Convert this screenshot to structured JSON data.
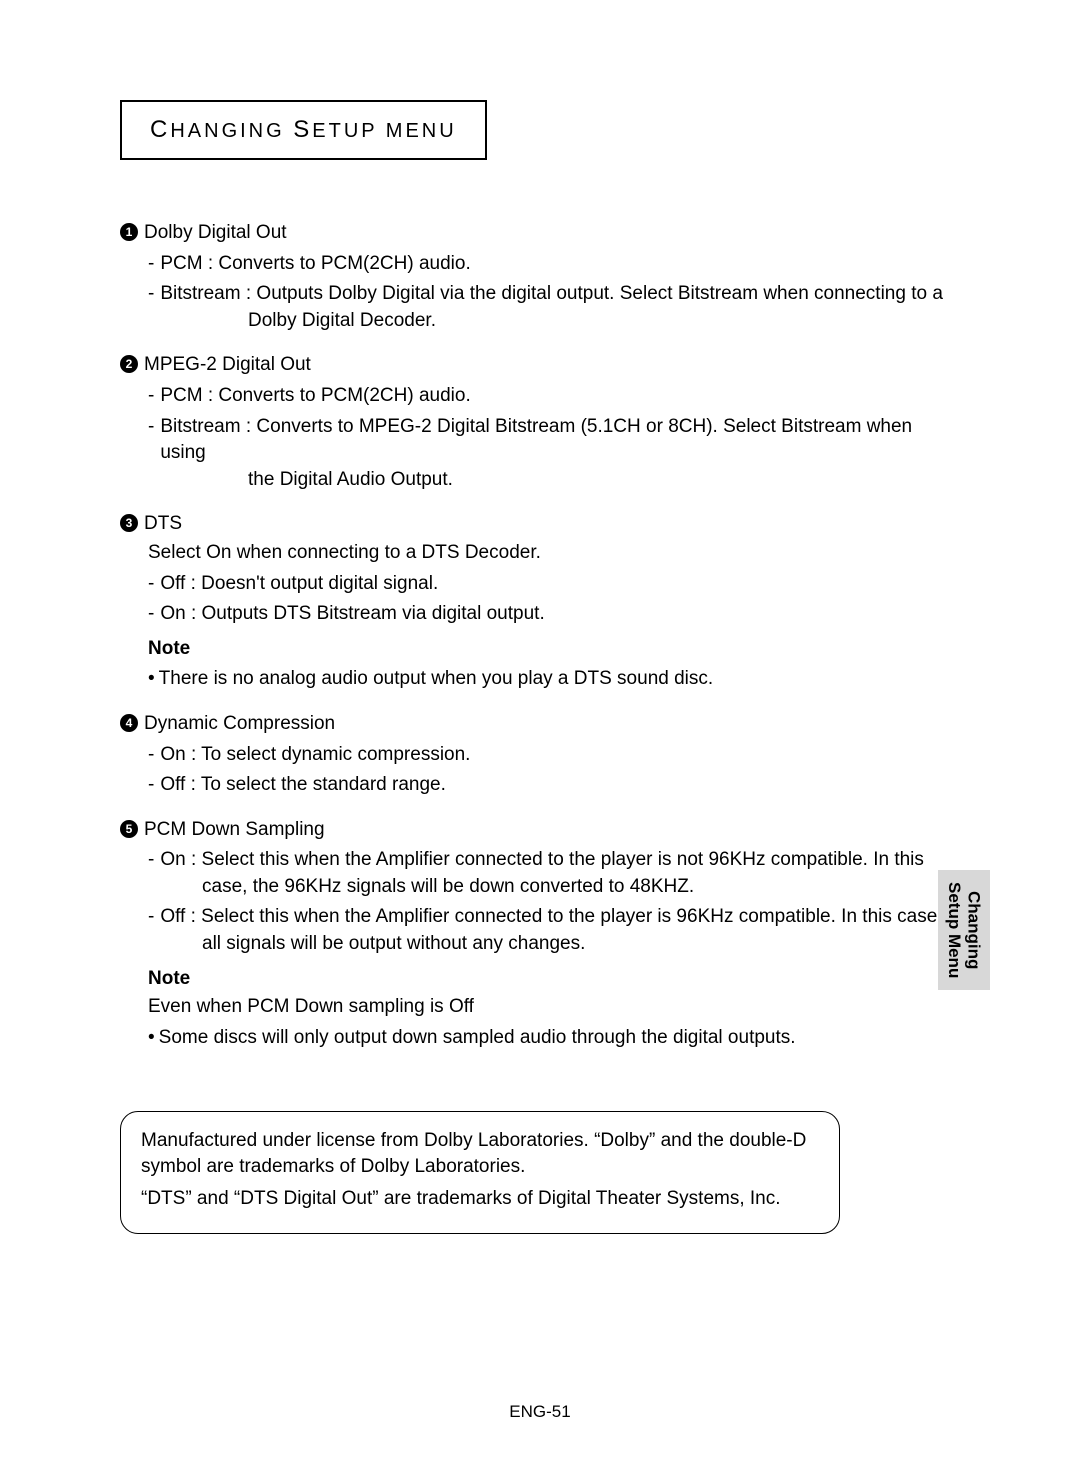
{
  "header": {
    "title_html": "<span class='cap'>C</span>HANGING <span class='cap'>S</span>ETUP MENU"
  },
  "sections": [
    {
      "num": "1",
      "title": "Dolby Digital Out",
      "items": [
        {
          "label": "PCM :",
          "desc": "Converts to PCM(2CH) audio.",
          "hang": false
        },
        {
          "label": "Bitstream :",
          "desc": "Outputs Dolby Digital via the digital output. Select Bitstream when connecting to a Dolby Digital Decoder.",
          "hang": true
        }
      ]
    },
    {
      "num": "2",
      "title": "MPEG-2 Digital Out",
      "items": [
        {
          "label": "PCM :",
          "desc": "Converts to PCM(2CH) audio.",
          "hang": false
        },
        {
          "label": "Bitstream :",
          "desc": "Converts to MPEG-2 Digital Bitstream (5.1CH or 8CH). Select Bitstream when using the Digital Audio Output.",
          "hang": true
        }
      ]
    },
    {
      "num": "3",
      "title": "DTS",
      "lead": "Select On when connecting to a DTS Decoder.",
      "items": [
        {
          "label": "Off :",
          "desc": "Doesn't output digital signal.",
          "hang": false
        },
        {
          "label": "On :",
          "desc": "Outputs DTS Bitstream via digital output.",
          "hang": false
        }
      ],
      "note_label": "Note",
      "notes": [
        "There is no analog audio output when you play a DTS sound disc."
      ]
    },
    {
      "num": "4",
      "title": "Dynamic Compression",
      "items": [
        {
          "label": "On :",
          "desc": "To select dynamic compression.",
          "hang": false
        },
        {
          "label": "Off :",
          "desc": "To select the standard range.",
          "hang": false
        }
      ]
    },
    {
      "num": "5",
      "title": "PCM Down Sampling",
      "items": [
        {
          "label": "On :",
          "desc": "Select this when the Amplifier connected to the player is not 96KHz compatible. In this case, the 96KHz signals will be down converted to 48KHZ.",
          "hang2": true
        },
        {
          "label": "Off :",
          "desc": "Select this when the Amplifier connected to the player is 96KHz compatible. In this case, all signals will be output without any changes.",
          "hang2": true
        }
      ],
      "note_label": "Note",
      "note_lead": "Even when PCM Down sampling is Off",
      "notes": [
        "Some discs will only output down sampled audio through the digital outputs."
      ]
    }
  ],
  "trademark": {
    "line1": "Manufactured under license from Dolby Laboratories. “Dolby” and the double-D symbol are trademarks of Dolby Laboratories.",
    "line2": "“DTS” and “DTS Digital Out” are trademarks of Digital Theater Systems, Inc."
  },
  "side_tab": {
    "line1": "Changing",
    "line2": "Setup Menu"
  },
  "page_number": "ENG-51"
}
